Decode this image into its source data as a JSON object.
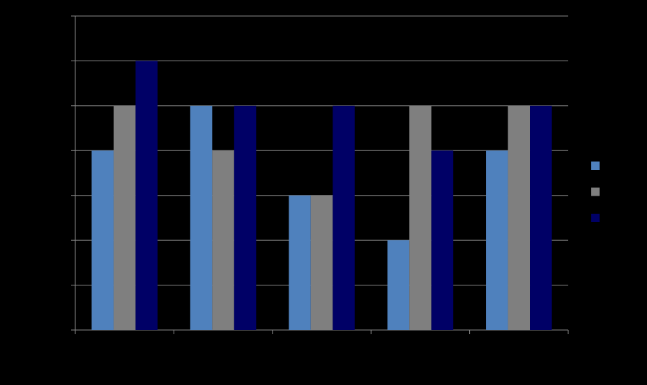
{
  "chart_data": {
    "type": "bar",
    "categories": [
      null,
      null,
      null,
      null,
      null
    ],
    "series": [
      {
        "color": "#4f81bd",
        "values": [
          4,
          5,
          3,
          2,
          4
        ]
      },
      {
        "color": "#7f7f7f",
        "values": [
          5,
          4,
          3,
          5,
          5
        ]
      },
      {
        "color": "#000066",
        "values": [
          6,
          5,
          5,
          4,
          5
        ]
      }
    ],
    "ylim": [
      0,
      7
    ],
    "yticks": [
      0,
      1,
      2,
      3,
      4,
      5,
      6,
      7
    ],
    "grid": true
  }
}
